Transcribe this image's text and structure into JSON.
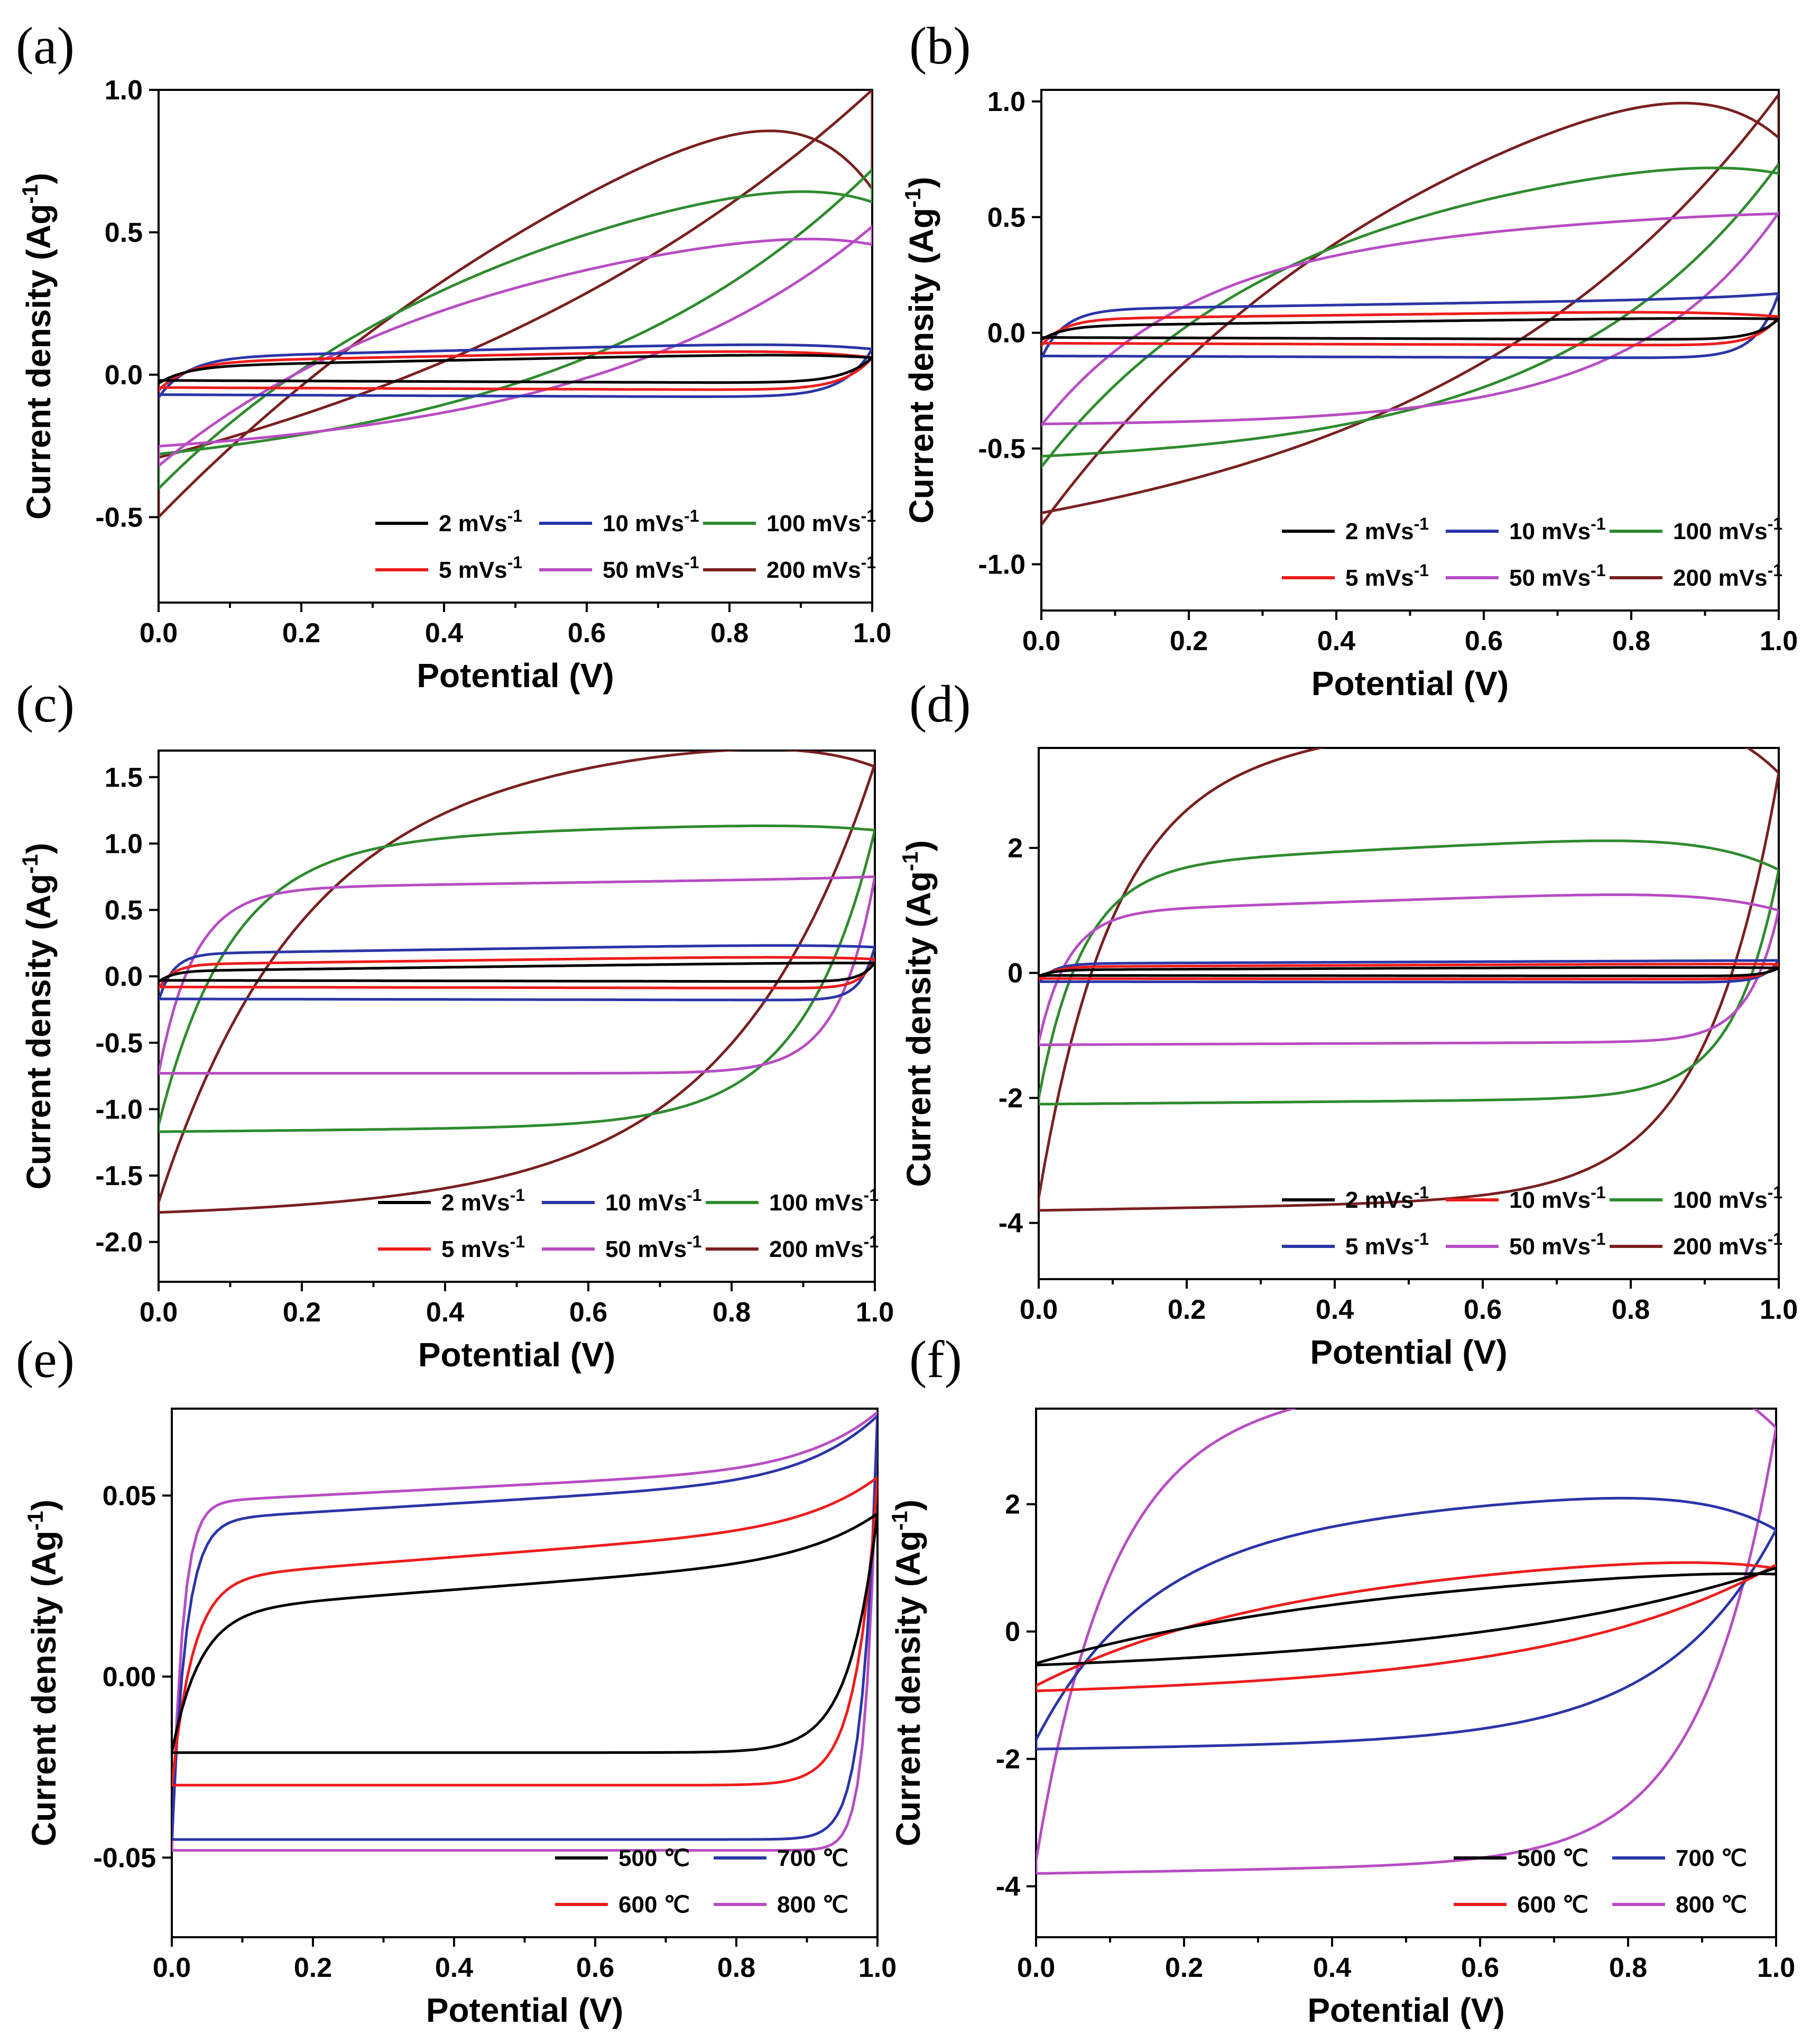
{
  "colors": {
    "black": "#000000",
    "red": "#ee1c1c",
    "blue": "#2a35a8",
    "green": "#2e8b2e",
    "purple": "#b84cc4",
    "maroon": "#7a1f1f"
  },
  "chart_data": [
    {
      "label": "(a)",
      "type": "line",
      "xlabel": "Potential (V)",
      "ylabel": "Current density (Ag",
      "ylabel_sup": "-1",
      "ylabel_end": ")",
      "xlim": [
        0,
        1
      ],
      "ylim": [
        -0.8,
        1.0
      ],
      "xticks": [
        {
          "v": 0,
          "t": "0.0"
        },
        {
          "v": 0.2,
          "t": "0.2"
        },
        {
          "v": 0.4,
          "t": "0.4"
        },
        {
          "v": 0.6,
          "t": "0.6"
        },
        {
          "v": 0.8,
          "t": "0.8"
        },
        {
          "v": 1.0,
          "t": "1.0"
        }
      ],
      "yticks": [
        {
          "v": -0.5,
          "t": "-0.5"
        },
        {
          "v": 0,
          "t": "0.0"
        },
        {
          "v": 0.5,
          "t": "0.5"
        },
        {
          "v": 1.0,
          "t": "1.0"
        }
      ],
      "legend_position": "lower-right",
      "series": [
        {
          "name": "2 mVs",
          "sup": "-1",
          "color": "black",
          "ya": -0.03,
          "yc": 0.03,
          "ta": 0.05,
          "tc": -0.01,
          "ea": 0.06,
          "ec": 0.01,
          "s": 0.04
        },
        {
          "name": "5 mVs",
          "sup": "-1",
          "color": "red",
          "ya": -0.055,
          "yc": 0.045,
          "ta": 0.05,
          "tc": -0.01,
          "ea": 0.06,
          "ec": 0.01,
          "s": 0.04
        },
        {
          "name": "10 mVs",
          "sup": "-1",
          "color": "blue",
          "ya": -0.08,
          "yc": 0.06,
          "ta": 0.06,
          "tc": -0.01,
          "ea": 0.09,
          "ec": 0.01,
          "s": 0.04
        },
        {
          "name": "50 mVs",
          "sup": "-1",
          "color": "purple",
          "ya": -0.32,
          "yc": 0.45,
          "ta": 0.15,
          "tc": 0.0,
          "ea": 0.52,
          "ec": 0.0,
          "s": 0.4
        },
        {
          "name": "100 mVs",
          "sup": "-1",
          "color": "green",
          "ya": -0.4,
          "yc": 0.65,
          "ta": 0.2,
          "tc": 0.0,
          "ea": 0.72,
          "ec": 0.0,
          "s": 0.45
        },
        {
          "name": "200 mVs",
          "sup": "-1",
          "color": "maroon",
          "ya": -0.5,
          "yc": 0.95,
          "ta": 0.5,
          "tc": 0.15,
          "ea": 1.0,
          "ec": 0.15,
          "s": 0.7
        }
      ],
      "legend_order": [
        0,
        2,
        4,
        1,
        3,
        5
      ]
    },
    {
      "label": "(b)",
      "type": "line",
      "xlabel": "Potential (V)",
      "ylabel": "Current density (Ag",
      "ylabel_sup": "-1",
      "ylabel_end": ")",
      "xlim": [
        0,
        1
      ],
      "ylim": [
        -1.2,
        1.05
      ],
      "xticks": [
        {
          "v": 0,
          "t": "0.0"
        },
        {
          "v": 0.2,
          "t": "0.2"
        },
        {
          "v": 0.4,
          "t": "0.4"
        },
        {
          "v": 0.6,
          "t": "0.6"
        },
        {
          "v": 0.8,
          "t": "0.8"
        },
        {
          "v": 1.0,
          "t": "1.0"
        }
      ],
      "yticks": [
        {
          "v": -1.0,
          "t": "-1.0"
        },
        {
          "v": -0.5,
          "t": "-0.5"
        },
        {
          "v": 0,
          "t": "0.0"
        },
        {
          "v": 0.5,
          "t": "0.5"
        },
        {
          "v": 1.0,
          "t": "1.0"
        }
      ],
      "legend_position": "lower-right",
      "series": [
        {
          "name": "2 mVs",
          "sup": "-1",
          "color": "black",
          "ya": -0.03,
          "yc": 0.03,
          "ta": 0.04,
          "tc": -0.01,
          "ea": 0.06,
          "ec": 0.01,
          "s": 0.03
        },
        {
          "name": "5 mVs",
          "sup": "-1",
          "color": "red",
          "ya": -0.055,
          "yc": 0.06,
          "ta": 0.04,
          "tc": -0.01,
          "ea": 0.07,
          "ec": 0.01,
          "s": 0.03
        },
        {
          "name": "10 mVs",
          "sup": "-1",
          "color": "blue",
          "ya": -0.11,
          "yc": 0.1,
          "ta": 0.05,
          "tc": -0.01,
          "ea": 0.17,
          "ec": 0.01,
          "s": 0.03
        },
        {
          "name": "50 mVs",
          "sup": "-1",
          "color": "purple",
          "ya": -0.4,
          "yc": 0.38,
          "ta": 0.15,
          "tc": 0.0,
          "ea": 0.52,
          "ec": 0.0,
          "s": 0.2
        },
        {
          "name": "100 mVs",
          "sup": "-1",
          "color": "green",
          "ya": -0.58,
          "yc": 0.58,
          "ta": 0.25,
          "tc": 0.0,
          "ea": 0.73,
          "ec": 0.0,
          "s": 0.3
        },
        {
          "name": "200 mVs",
          "sup": "-1",
          "color": "maroon",
          "ya": -0.83,
          "yc": 0.9,
          "ta": 0.5,
          "tc": 0.15,
          "ea": 1.03,
          "ec": 0.15,
          "s": 0.45
        }
      ],
      "legend_order": [
        0,
        2,
        4,
        1,
        3,
        5
      ]
    },
    {
      "label": "(c)",
      "type": "line",
      "xlabel": "Potential (V)",
      "ylabel": "Current density (Ag",
      "ylabel_sup": "-1",
      "ylabel_end": ")",
      "xlim": [
        0,
        1
      ],
      "ylim": [
        -2.3,
        1.7
      ],
      "xticks": [
        {
          "v": 0,
          "t": "0.0"
        },
        {
          "v": 0.2,
          "t": "0.2"
        },
        {
          "v": 0.4,
          "t": "0.4"
        },
        {
          "v": 0.6,
          "t": "0.6"
        },
        {
          "v": 0.8,
          "t": "0.8"
        },
        {
          "v": 1.0,
          "t": "1.0"
        }
      ],
      "yticks": [
        {
          "v": -2.0,
          "t": "-2.0"
        },
        {
          "v": -1.5,
          "t": "-1.5"
        },
        {
          "v": -1.0,
          "t": "-1.0"
        },
        {
          "v": -0.5,
          "t": "-0.5"
        },
        {
          "v": 0,
          "t": "0.0"
        },
        {
          "v": 0.5,
          "t": "0.5"
        },
        {
          "v": 1.0,
          "t": "1.0"
        },
        {
          "v": 1.5,
          "t": "1.5"
        }
      ],
      "legend_position": "lower-right",
      "series": [
        {
          "name": "2 mVs",
          "sup": "-1",
          "color": "black",
          "ya": -0.04,
          "yc": 0.04,
          "ta": 0.07,
          "tc": -0.01,
          "ea": 0.1,
          "ec": 0.01,
          "s": 0.02
        },
        {
          "name": "5 mVs",
          "sup": "-1",
          "color": "red",
          "ya": -0.09,
          "yc": 0.09,
          "ta": 0.07,
          "tc": -0.01,
          "ea": 0.13,
          "ec": 0.01,
          "s": 0.02
        },
        {
          "name": "10 mVs",
          "sup": "-1",
          "color": "blue",
          "ya": -0.18,
          "yc": 0.17,
          "ta": 0.08,
          "tc": -0.01,
          "ea": 0.22,
          "ec": 0.01,
          "s": 0.02
        },
        {
          "name": "50 mVs",
          "sup": "-1",
          "color": "purple",
          "ya": -0.73,
          "yc": 0.66,
          "ta": 0.08,
          "tc": 0.0,
          "ea": 0.75,
          "ec": 0.0,
          "s": 0.05
        },
        {
          "name": "100 mVs",
          "sup": "-1",
          "color": "green",
          "ya": -1.12,
          "yc": 1.02,
          "ta": 0.15,
          "tc": 0.05,
          "ea": 1.1,
          "ec": 0.05,
          "s": 0.1
        },
        {
          "name": "200 mVs",
          "sup": "-1",
          "color": "maroon",
          "ya": -1.7,
          "yc": 1.55,
          "ta": 0.3,
          "tc": 0.1,
          "ea": 1.6,
          "ec": 0.1,
          "s": 0.2
        }
      ],
      "legend_order": [
        0,
        2,
        4,
        1,
        3,
        5
      ]
    },
    {
      "label": "(d)",
      "type": "line",
      "xlabel": "Potential (V)",
      "ylabel": "Current density (Ag",
      "ylabel_sup": "-1",
      "ylabel_end": ")",
      "xlim": [
        0,
        1
      ],
      "ylim": [
        -4.9,
        3.6
      ],
      "xticks": [
        {
          "v": 0,
          "t": "0.0"
        },
        {
          "v": 0.2,
          "t": "0.2"
        },
        {
          "v": 0.4,
          "t": "0.4"
        },
        {
          "v": 0.6,
          "t": "0.6"
        },
        {
          "v": 0.8,
          "t": "0.8"
        },
        {
          "v": 1.0,
          "t": "1.0"
        }
      ],
      "yticks": [
        {
          "v": -4,
          "t": "-4"
        },
        {
          "v": -2,
          "t": "-2"
        },
        {
          "v": 0,
          "t": "0"
        },
        {
          "v": 2,
          "t": "2"
        }
      ],
      "legend_position": "lower-right",
      "series": [
        {
          "name": "2 mVs",
          "sup": "-1",
          "color": "black",
          "ya": -0.05,
          "yc": 0.05,
          "ta": 0.05,
          "tc": -0.01,
          "ea": 0.08,
          "ec": 0.01,
          "s": 0.02
        },
        {
          "name": "5 mVs",
          "sup": "-1",
          "color": "blue",
          "ya": -0.15,
          "yc": 0.15,
          "ta": 0.05,
          "tc": -0.01,
          "ea": 0.2,
          "ec": 0.01,
          "s": 0.02
        },
        {
          "name": "10 mVs",
          "sup": "-1",
          "color": "red",
          "ya": -0.1,
          "yc": 0.1,
          "ta": 0.05,
          "tc": -0.01,
          "ea": 0.14,
          "ec": 0.01,
          "s": 0.02
        },
        {
          "name": "50 mVs",
          "sup": "-1",
          "color": "purple",
          "ya": -1.1,
          "yc": 0.97,
          "ta": 0.4,
          "tc": 0.05,
          "ea": 1.0,
          "ec": 0.05,
          "s": 0.04
        },
        {
          "name": "100 mVs",
          "sup": "-1",
          "color": "green",
          "ya": -2.0,
          "yc": 1.7,
          "ta": 0.6,
          "tc": 0.1,
          "ea": 1.65,
          "ec": 0.1,
          "s": 0.06
        },
        {
          "name": "200 mVs",
          "sup": "-1",
          "color": "maroon",
          "ya": -3.6,
          "yc": 3.3,
          "ta": 1.2,
          "tc": 0.2,
          "ea": 3.2,
          "ec": 0.2,
          "s": 0.1
        }
      ],
      "legend_order": [
        0,
        2,
        4,
        1,
        3,
        5
      ]
    },
    {
      "label": "(e)",
      "type": "line",
      "xlabel": "Potential (V)",
      "ylabel": "Current density (Ag",
      "ylabel_sup": "-1",
      "ylabel_end": ")",
      "xlim": [
        0,
        1
      ],
      "ylim": [
        -0.072,
        0.074
      ],
      "xticks": [
        {
          "v": 0,
          "t": "0.0"
        },
        {
          "v": 0.2,
          "t": "0.2"
        },
        {
          "v": 0.4,
          "t": "0.4"
        },
        {
          "v": 0.6,
          "t": "0.6"
        },
        {
          "v": 0.8,
          "t": "0.8"
        },
        {
          "v": 1.0,
          "t": "1.0"
        }
      ],
      "yticks": [
        {
          "v": -0.05,
          "t": "-0.05"
        },
        {
          "v": 0,
          "t": "0.00"
        },
        {
          "v": 0.05,
          "t": "0.05"
        }
      ],
      "legend_position": "lower-right",
      "series": [
        {
          "name": "500 ℃",
          "sup": "",
          "color": "black",
          "ya": -0.021,
          "yc": 0.018,
          "ta": 0.015,
          "tc": 0.0,
          "ea": 0.045,
          "ec": 0.0,
          "s": 0.04
        },
        {
          "name": "600 ℃",
          "sup": "",
          "color": "red",
          "ya": -0.03,
          "yc": 0.027,
          "ta": 0.015,
          "tc": 0.0,
          "ea": 0.055,
          "ec": 0.0,
          "s": 0.03
        },
        {
          "name": "700 ℃",
          "sup": "",
          "color": "blue",
          "ya": -0.045,
          "yc": 0.043,
          "ta": 0.012,
          "tc": 0.0,
          "ea": 0.072,
          "ec": 0.0,
          "s": 0.02
        },
        {
          "name": "800 ℃",
          "sup": "",
          "color": "purple",
          "ya": -0.048,
          "yc": 0.048,
          "ta": 0.01,
          "tc": 0.0,
          "ea": 0.073,
          "ec": 0.0,
          "s": 0.015
        }
      ],
      "legend_order": [
        0,
        2,
        1,
        3
      ]
    },
    {
      "label": "(f)",
      "type": "line",
      "xlabel": "Potential (V)",
      "ylabel": "Current density (Ag",
      "ylabel_sup": "-1",
      "ylabel_end": ")",
      "xlim": [
        0,
        1
      ],
      "ylim": [
        -4.8,
        3.5
      ],
      "xticks": [
        {
          "v": 0,
          "t": "0.0"
        },
        {
          "v": 0.2,
          "t": "0.2"
        },
        {
          "v": 0.4,
          "t": "0.4"
        },
        {
          "v": 0.6,
          "t": "0.6"
        },
        {
          "v": 0.8,
          "t": "0.8"
        },
        {
          "v": 1.0,
          "t": "1.0"
        }
      ],
      "yticks": [
        {
          "v": -4,
          "t": "-4"
        },
        {
          "v": -2,
          "t": "-2"
        },
        {
          "v": 0,
          "t": "0"
        },
        {
          "v": 2,
          "t": "2"
        }
      ],
      "legend_position": "lower-right",
      "series": [
        {
          "name": "500 ℃",
          "sup": "",
          "color": "black",
          "ya": -0.5,
          "yc": 0.7,
          "ta": 0.4,
          "tc": 0.15,
          "ea": 1.0,
          "ec": 0.15,
          "s": 0.4
        },
        {
          "name": "600 ℃",
          "sup": "",
          "color": "red",
          "ya": -0.85,
          "yc": 0.8,
          "ta": 0.5,
          "tc": 0.15,
          "ea": 1.05,
          "ec": 0.15,
          "s": 0.3
        },
        {
          "name": "700 ℃",
          "sup": "",
          "color": "blue",
          "ya": -1.7,
          "yc": 1.55,
          "ta": 0.8,
          "tc": 0.15,
          "ea": 1.6,
          "ec": 0.15,
          "s": 0.15
        },
        {
          "name": "800 ℃",
          "sup": "",
          "color": "purple",
          "ya": -3.6,
          "yc": 3.3,
          "ta": 1.2,
          "tc": 0.2,
          "ea": 3.2,
          "ec": 0.2,
          "s": 0.1
        }
      ],
      "legend_order": [
        0,
        2,
        1,
        3
      ]
    }
  ]
}
